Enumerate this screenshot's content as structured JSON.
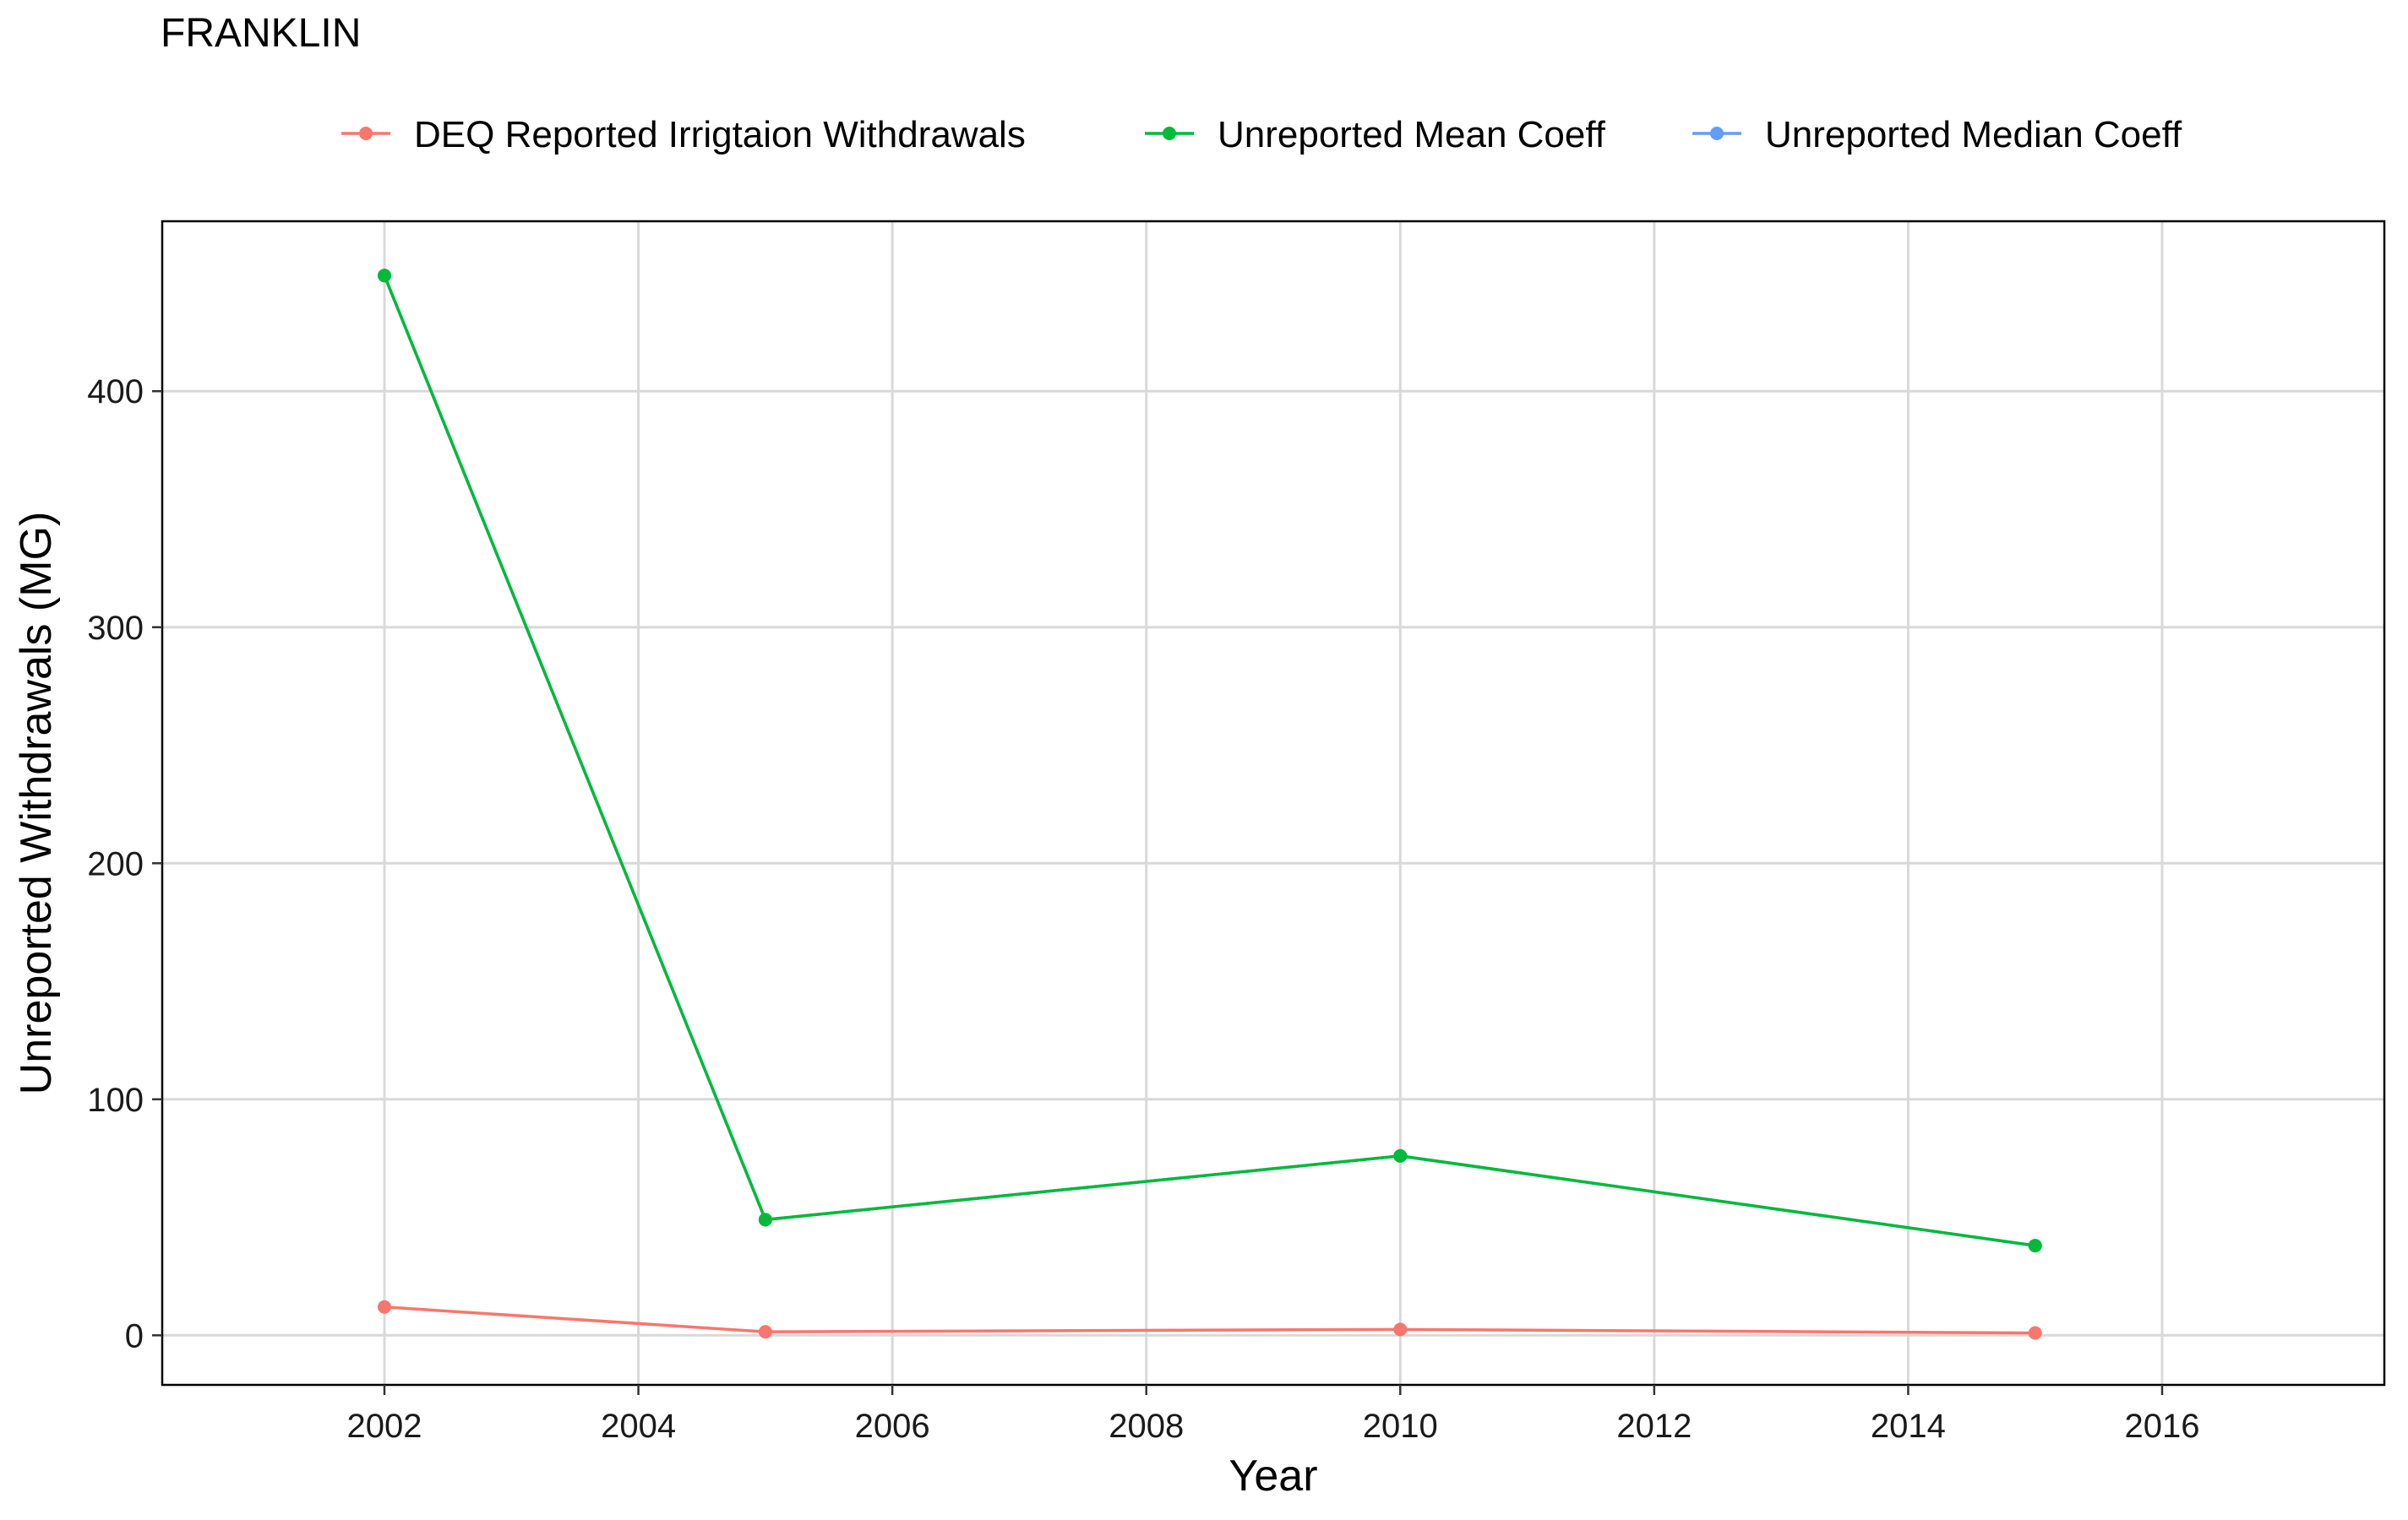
{
  "chart_data": {
    "type": "line",
    "title": "FRANKLIN",
    "xlabel": "Year",
    "ylabel": "Unreported Withdrawals (MG)",
    "xlim": [
      2000.25,
      2017.75
    ],
    "ylim": [
      -21,
      472
    ],
    "x_ticks": [
      2002,
      2004,
      2006,
      2008,
      2010,
      2012,
      2014,
      2016
    ],
    "y_ticks": [
      0,
      100,
      200,
      300,
      400
    ],
    "grid": true,
    "legend_position": "top",
    "series": [
      {
        "name": "DEQ Reported Irrigtaion Withdrawals",
        "color": "#F8766D",
        "x": [
          2002,
          2005,
          2010,
          2015
        ],
        "y": [
          12,
          1.5,
          2.5,
          1
        ]
      },
      {
        "name": "Unreported Mean Coeff",
        "color": "#00BA38",
        "x": [
          2002,
          2005,
          2010,
          2015
        ],
        "y": [
          449,
          49,
          76,
          38
        ]
      },
      {
        "name": "Unreported Median Coeff",
        "color": "#619CFF",
        "x": [
          2002,
          2005,
          2010,
          2015
        ],
        "y": [
          449,
          49,
          76,
          38
        ]
      }
    ]
  }
}
